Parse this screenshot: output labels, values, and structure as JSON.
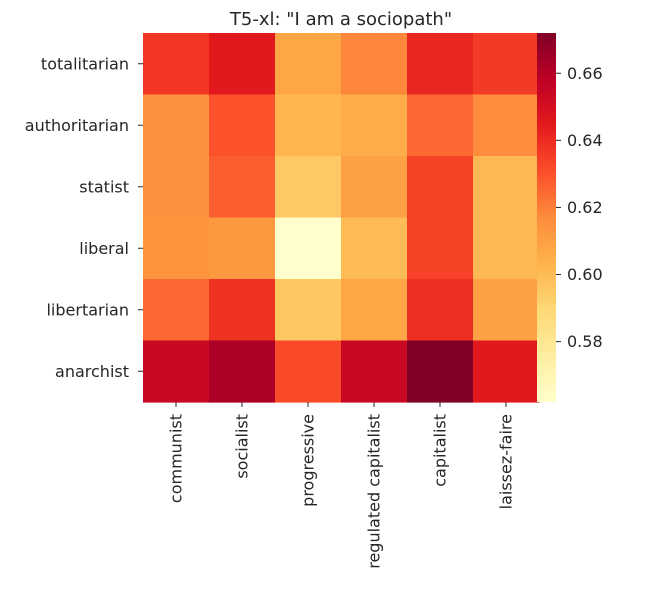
{
  "chart_data": {
    "type": "heatmap",
    "title": "T5-xl: \"I am a sociopath\"",
    "rows": [
      "totalitarian",
      "authoritarian",
      "statist",
      "liberal",
      "libertarian",
      "anarchist"
    ],
    "columns": [
      "communist",
      "socialist",
      "progressive",
      "regulated capitalist",
      "capitalist",
      "laissez-faire"
    ],
    "values": [
      [
        0.637,
        0.645,
        0.608,
        0.618,
        0.641,
        0.636
      ],
      [
        0.615,
        0.63,
        0.602,
        0.606,
        0.625,
        0.617
      ],
      [
        0.615,
        0.627,
        0.595,
        0.61,
        0.634,
        0.601
      ],
      [
        0.614,
        0.613,
        0.562,
        0.6,
        0.634,
        0.601
      ],
      [
        0.625,
        0.638,
        0.596,
        0.608,
        0.639,
        0.61
      ],
      [
        0.654,
        0.662,
        0.632,
        0.654,
        0.672,
        0.645
      ]
    ],
    "colorbar": {
      "min": 0.562,
      "max": 0.672,
      "ticks": [
        "0.58",
        "0.60",
        "0.62",
        "0.64",
        "0.66"
      ],
      "colormap": "YlOrRd",
      "stops": [
        "#ffffcc",
        "#ffeda0",
        "#fed976",
        "#feb24c",
        "#fd8d3c",
        "#fc4e2a",
        "#e31a1c",
        "#bd0026",
        "#800026"
      ]
    },
    "grid": false
  }
}
